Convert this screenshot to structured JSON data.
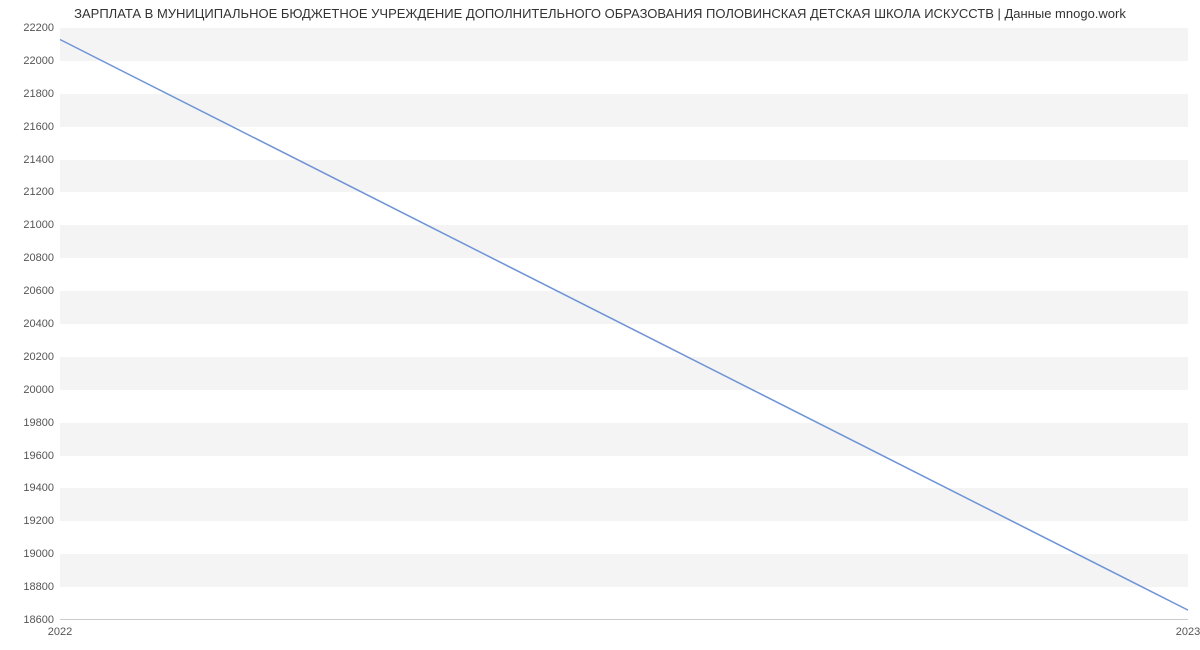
{
  "chart": {
    "type": "line",
    "title": "ЗАРПЛАТА В МУНИЦИПАЛЬНОЕ БЮДЖЕТНОЕ  УЧРЕЖДЕНИЕ ДОПОЛНИТЕЛЬНОГО ОБРАЗОВАНИЯ  ПОЛОВИНСКАЯ ДЕТСКАЯ ШКОЛА ИСКУССТВ | Данные mnogo.work",
    "title_fontsize": 13,
    "title_color": "#333333",
    "background_color": "#ffffff",
    "grid_band_color": "#f4f4f4",
    "axis_line_color": "#cccccc",
    "line_color": "#6f94d6",
    "line_width": 1.5,
    "label_fontsize": 11,
    "label_color": "#555555",
    "y": {
      "min": 18600,
      "max": 22200,
      "tick_step": 200,
      "ticks": [
        18600,
        18800,
        19000,
        19200,
        19400,
        19600,
        19800,
        20000,
        20200,
        20400,
        20600,
        20800,
        21000,
        21200,
        21400,
        21600,
        21800,
        22000,
        22200
      ]
    },
    "x": {
      "categories": [
        "2022",
        "2023"
      ]
    },
    "series": [
      {
        "points": [
          [
            0,
            22130
          ],
          [
            1,
            18660
          ]
        ]
      }
    ]
  }
}
